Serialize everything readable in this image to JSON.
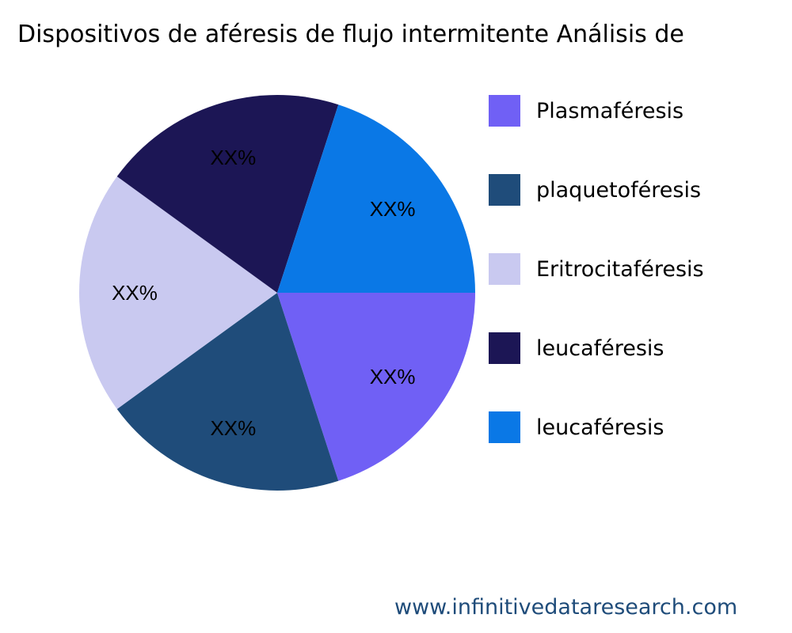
{
  "chart_data": {
    "type": "pie",
    "title": "Dispositivos de aféresis de flujo intermitente Análisis de",
    "categories": [
      "Plasmaféresis",
      "plaquetoféresis",
      "Eritrocitaféresis",
      "leucaféresis",
      "leucaféresis"
    ],
    "values": [
      20,
      20,
      20,
      20,
      20
    ],
    "data_labels": [
      "XX%",
      "XX%",
      "XX%",
      "XX%",
      "XX%"
    ],
    "colors": [
      "#7060f5",
      "#1f4c7a",
      "#c9c9f0",
      "#1c1655",
      "#0a78e6"
    ],
    "legend_placement": "right"
  },
  "footer": {
    "text": "www.infinitivedataresearch.com"
  }
}
